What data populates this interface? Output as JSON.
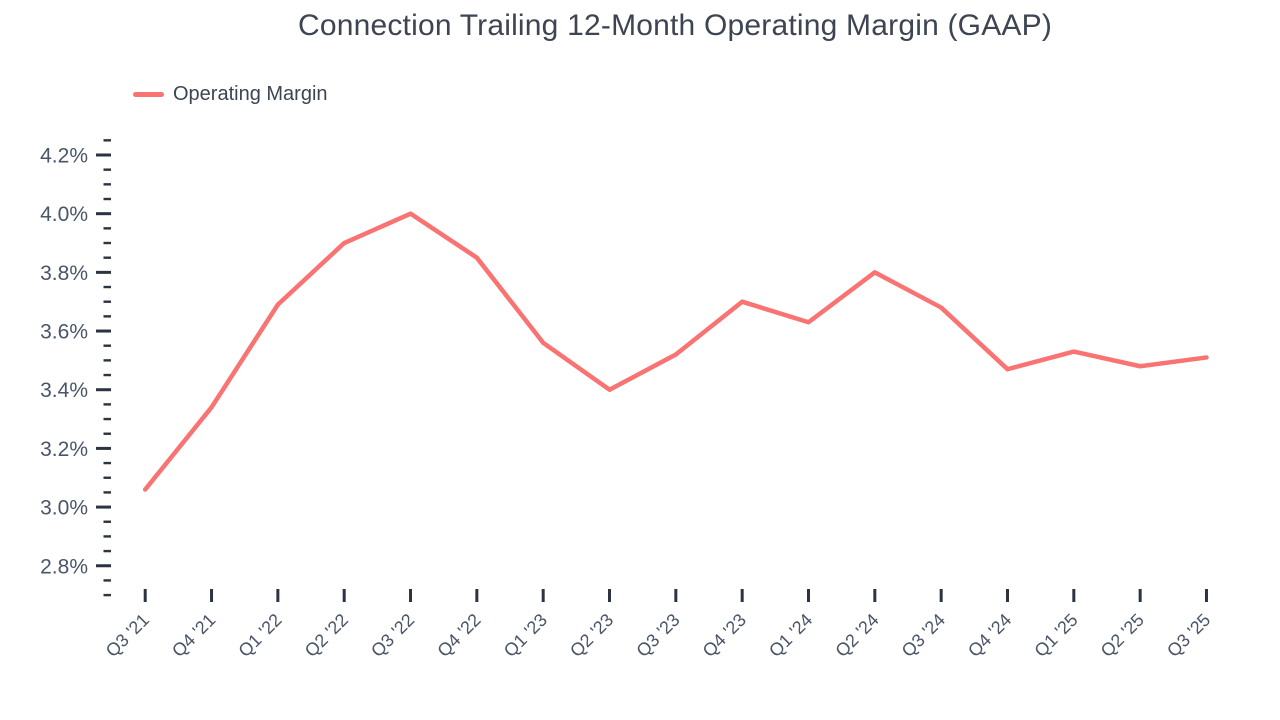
{
  "colors": {
    "line": "#F97373",
    "title_text": "#3D4452",
    "axis_label_text": "#4A5568",
    "tick": "#2B3440",
    "background": "#FFFFFF"
  },
  "chart_data": {
    "type": "line",
    "title": "Connection Trailing 12-Month Operating Margin (GAAP)",
    "categories": [
      "Q3 '21",
      "Q4 '21",
      "Q1 '22",
      "Q2 '22",
      "Q3 '22",
      "Q4 '22",
      "Q1 '23",
      "Q2 '23",
      "Q3 '23",
      "Q4 '23",
      "Q1 '24",
      "Q2 '24",
      "Q3 '24",
      "Q4 '24",
      "Q1 '25",
      "Q2 '25",
      "Q3 '25"
    ],
    "series": [
      {
        "name": "Operating Margin",
        "color": "#F97373",
        "values": [
          3.06,
          3.34,
          3.69,
          3.9,
          4.0,
          3.85,
          3.56,
          3.4,
          3.52,
          3.7,
          3.63,
          3.8,
          3.68,
          3.47,
          3.53,
          3.48,
          3.51
        ]
      }
    ],
    "unit": "%",
    "xlabel": "",
    "ylabel": "",
    "y_tick_labels": [
      "4.2%",
      "4.0%",
      "3.8%",
      "3.6%",
      "3.4%",
      "3.2%",
      "3.0%",
      "2.8%"
    ],
    "y_major_values": [
      4.2,
      4.0,
      3.8,
      3.6,
      3.4,
      3.2,
      3.0,
      2.8
    ],
    "y_minor_step": 0.05,
    "ylim": [
      2.7,
      4.25
    ],
    "grid": false,
    "legend_position": "top-left"
  }
}
